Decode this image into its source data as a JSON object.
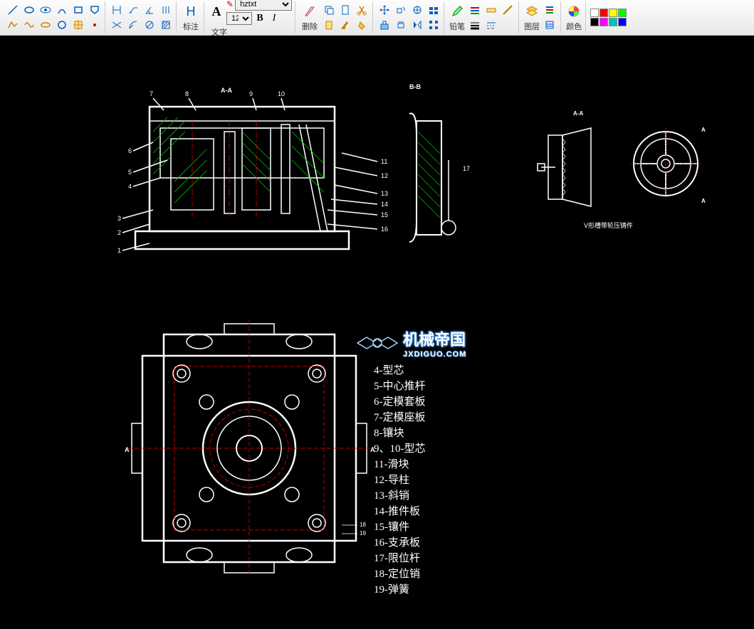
{
  "toolbar": {
    "draw_tools_row1": [
      "line",
      "ellipse",
      "eye",
      "arc",
      "rect",
      "shape"
    ],
    "draw_tools_row2": [
      "polyline",
      "spline",
      "oval",
      "circle",
      "crop",
      "point"
    ],
    "dim_tools_row1": [
      "vert",
      "arrow",
      "angle",
      "hh"
    ],
    "dim_tools_row2": [
      "cross",
      "arc-dim",
      "circle-dim",
      "hatch"
    ],
    "annotate_label": "标注",
    "text_label": "文字",
    "text_button_char": "A",
    "font_name": "hztxt",
    "font_size": "12",
    "bold": "B",
    "italic": "I",
    "delete_label": "删除",
    "delete_tools": [
      "copy",
      "cut",
      "scissors"
    ],
    "modify_tools": [
      "paste",
      "brush",
      "paint"
    ],
    "move_tools_row1": [
      "move",
      "rotate",
      "scale",
      "align"
    ],
    "move_tools_row2": [
      "pocket",
      "mirror",
      "flip",
      "grid"
    ],
    "pencil_label": "铅笔",
    "style_tools_row1": [
      "lines",
      "ruler",
      "measure"
    ],
    "style_tools_row2": [
      "weight1",
      "weight2"
    ],
    "layer_label": "图层",
    "layer_tools": [
      "layers",
      "list"
    ],
    "color_label": "颜色",
    "swatches_row1": [
      "#ffffff",
      "#ff0000",
      "#ffff00",
      "#00ff00"
    ],
    "swatches_row2": [
      "#000000",
      "#ff00ff",
      "#00c0c0",
      "#0000ff"
    ]
  },
  "drawing": {
    "section_label_aa": "A-A",
    "section_label_bb": "B-B",
    "section_label_a": "A",
    "detail_label": "V形槽带轮压铸件",
    "callout_numbers_left": [
      "1",
      "2",
      "3",
      "4",
      "5",
      "6",
      "7",
      "8"
    ],
    "callout_aa_top": [
      "9",
      "10"
    ],
    "callout_numbers_right": [
      "11",
      "12",
      "13",
      "14",
      "15",
      "16"
    ],
    "callout_17": "17",
    "callout_bottom_18": "18",
    "callout_bottom_19": "19",
    "line_color": "#ffffff",
    "hatch_color": "#00c000",
    "hidden_color": "#ff0000",
    "center_color": "#ff0000"
  },
  "parts_list": [
    "4-型芯",
    "5-中心推杆",
    "6-定模套板",
    "7-定模座板",
    "8-镶块",
    "9、10-型芯",
    "11-滑块",
    "12-导柱",
    "13-斜销",
    "14-推件板",
    "15-镶件",
    "16-支承板",
    "17-限位杆",
    "18-定位销",
    "19-弹簧"
  ],
  "watermark": {
    "title": "机械帝国",
    "url": "JXDIGUO.COM"
  }
}
